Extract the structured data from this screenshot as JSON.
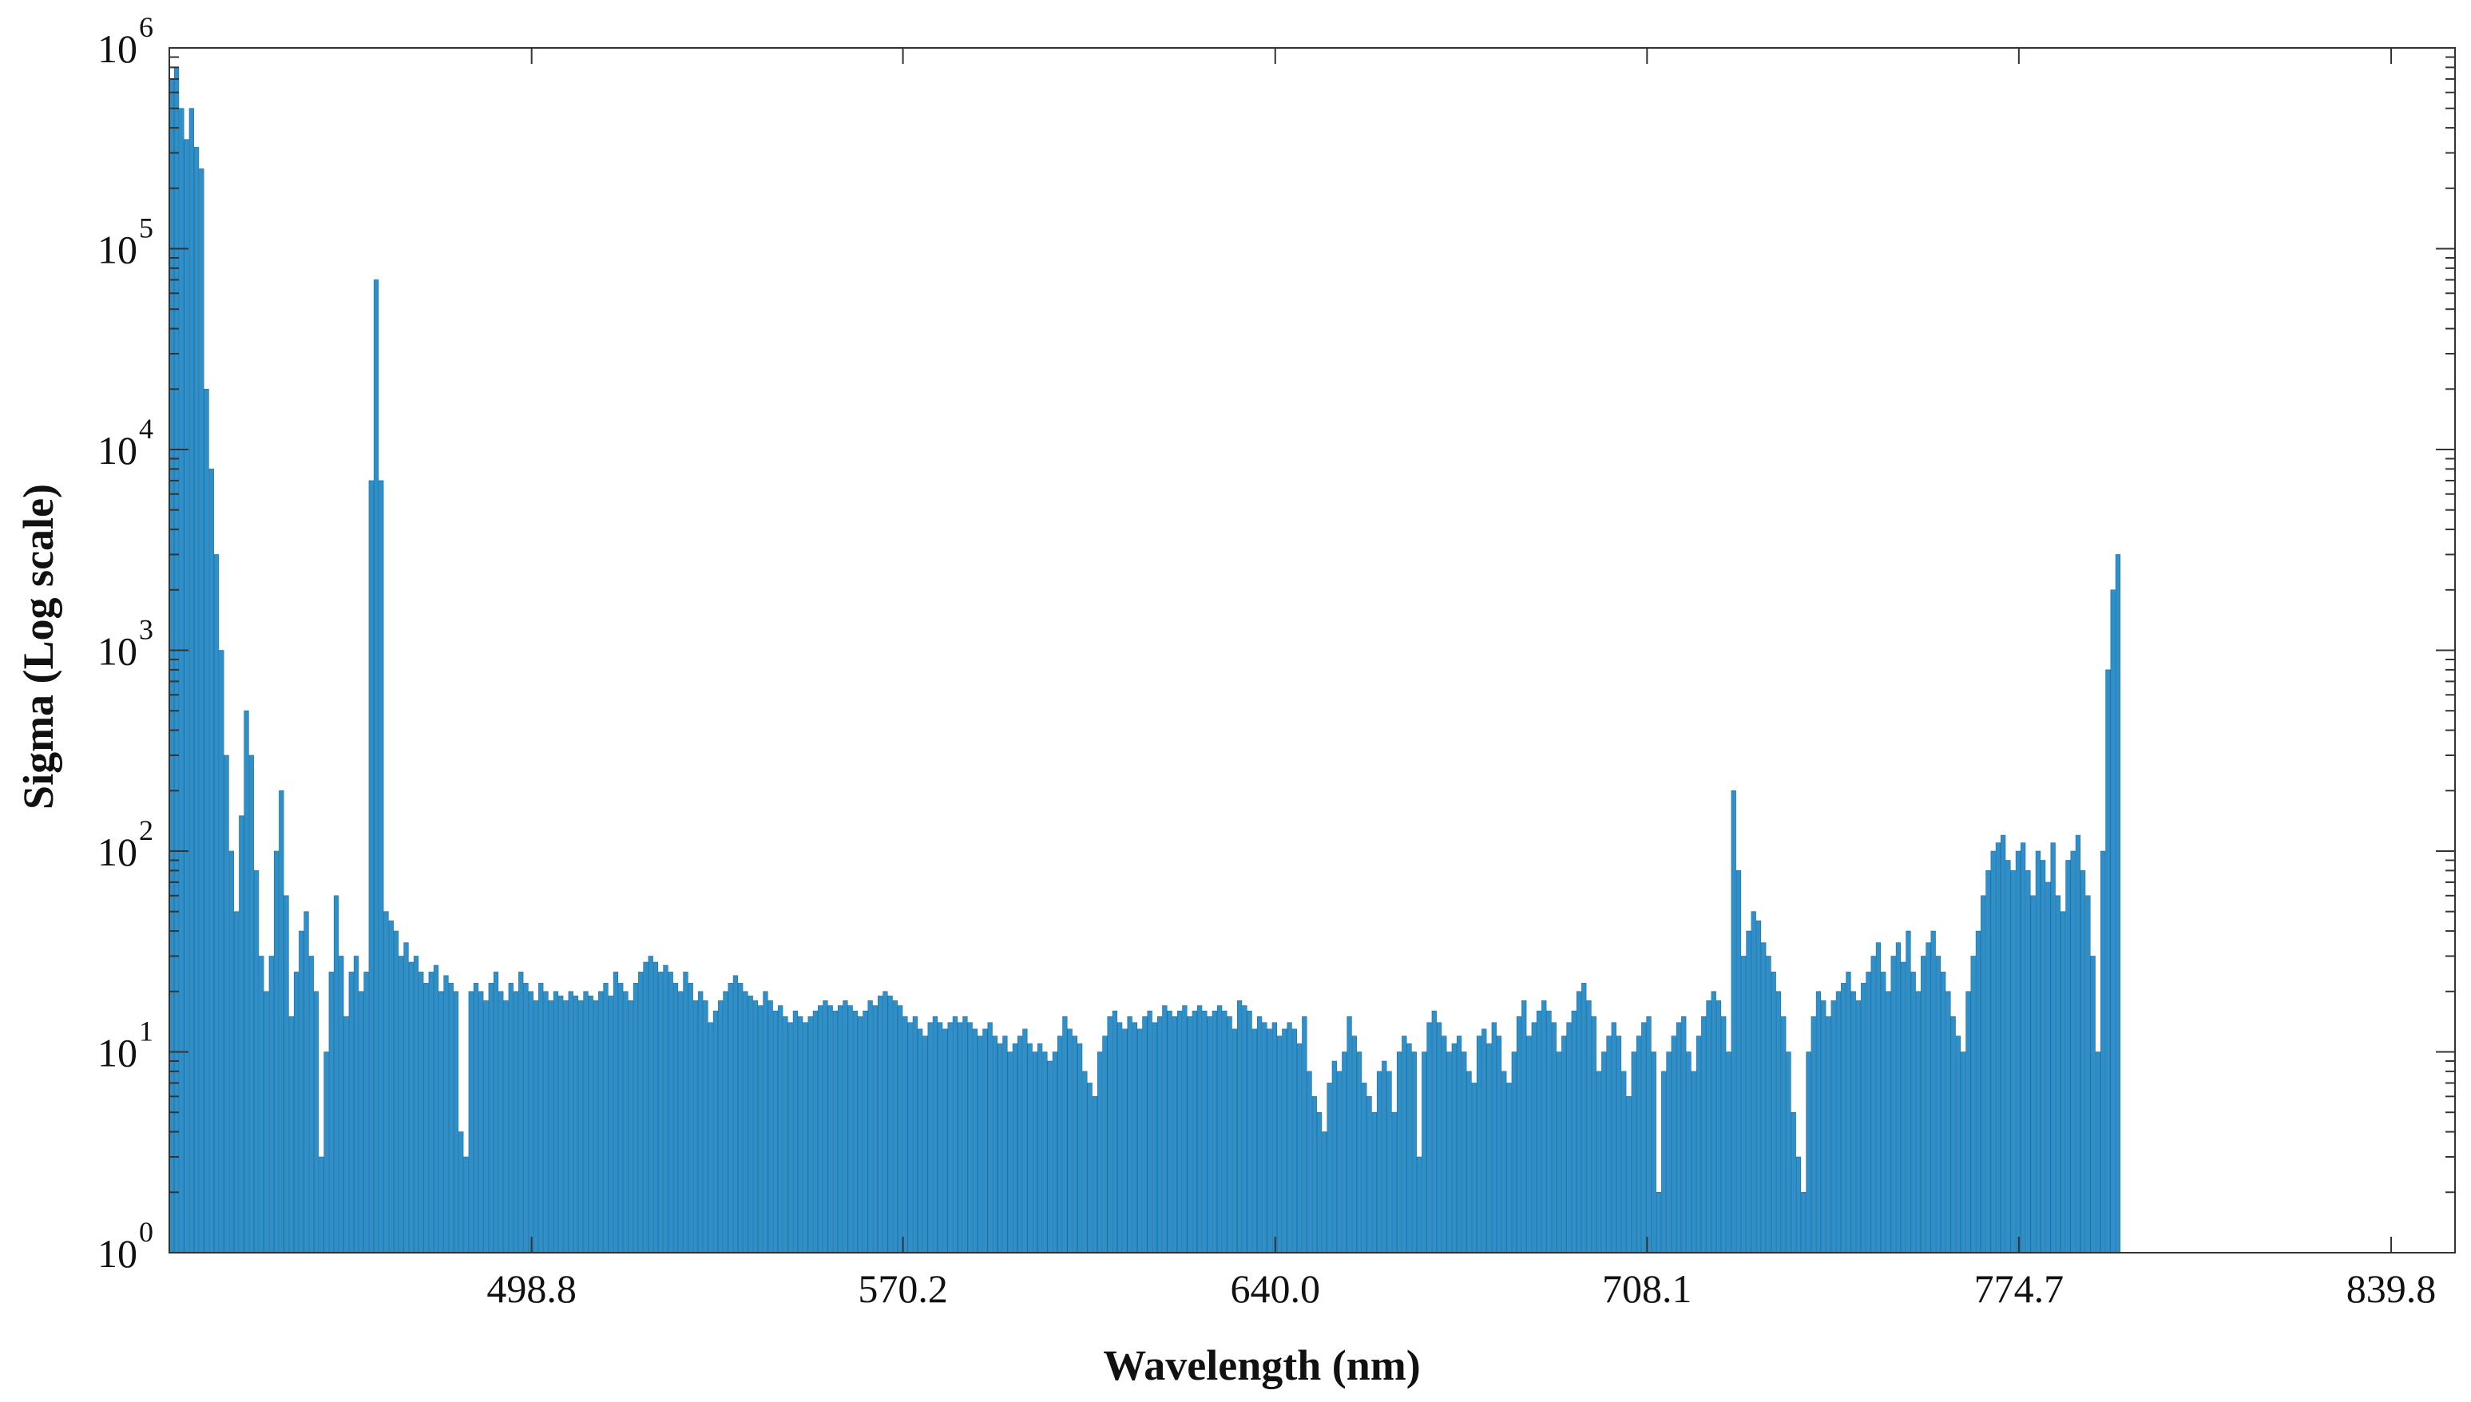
{
  "chart_data": {
    "type": "bar",
    "xlabel": "Wavelength (nm)",
    "ylabel": "Sigma (Log scale)",
    "yscale": "log",
    "ylim": [
      1,
      1000000
    ],
    "xlim": [
      401,
      859
    ],
    "x_ticks": [
      {
        "value": 473.6,
        "label": "498.8"
      },
      {
        "value": 548.0,
        "label": "570.2"
      },
      {
        "value": 622.6,
        "label": "640.0"
      },
      {
        "value": 697.1,
        "label": "708.1"
      },
      {
        "value": 771.6,
        "label": "774.7"
      },
      {
        "value": 846.2,
        "label": "839.8"
      }
    ],
    "y_ticks": [
      {
        "value": 1,
        "base": "10",
        "exp": "0"
      },
      {
        "value": 10,
        "base": "10",
        "exp": "1"
      },
      {
        "value": 100,
        "base": "10",
        "exp": "2"
      },
      {
        "value": 1000,
        "base": "10",
        "exp": "3"
      },
      {
        "value": 10000,
        "base": "10",
        "exp": "4"
      },
      {
        "value": 100000,
        "base": "10",
        "exp": "5"
      },
      {
        "value": 1000000,
        "base": "10",
        "exp": "6"
      }
    ],
    "grid": false,
    "bar_color": "#2f8fc9",
    "series": [
      {
        "x_start": 401,
        "x_step": 1,
        "values": [
          700000,
          800000,
          500000,
          350000,
          500000,
          320000,
          250000,
          20000,
          8000,
          3000,
          1000,
          300,
          100,
          50,
          150,
          500,
          300,
          80,
          30,
          20,
          30,
          100,
          200,
          60,
          15,
          25,
          40,
          50,
          30,
          20,
          3,
          10,
          25,
          60,
          30,
          15,
          25,
          30,
          20,
          25,
          7000,
          70000,
          7000,
          50,
          45,
          40,
          30,
          35,
          28,
          30,
          25,
          22,
          25,
          27,
          20,
          24,
          22,
          20,
          4,
          3,
          20,
          22,
          20,
          18,
          22,
          25,
          20,
          18,
          22,
          20,
          25,
          22,
          20,
          18,
          22,
          20,
          18,
          20,
          19,
          18,
          20,
          19,
          18,
          20,
          19,
          18,
          20,
          22,
          19,
          25,
          22,
          20,
          18,
          22,
          25,
          28,
          30,
          28,
          25,
          27,
          25,
          22,
          20,
          25,
          22,
          18,
          20,
          18,
          14,
          16,
          18,
          20,
          22,
          24,
          22,
          20,
          19,
          18,
          17,
          20,
          18,
          16,
          17,
          15,
          14,
          16,
          15,
          14,
          15,
          16,
          17,
          18,
          17,
          16,
          17,
          18,
          17,
          16,
          15,
          16,
          18,
          17,
          19,
          20,
          19,
          18,
          17,
          15,
          14,
          15,
          13,
          12,
          14,
          15,
          14,
          13,
          14,
          15,
          14,
          15,
          14,
          13,
          12,
          13,
          14,
          12,
          11,
          12,
          10,
          11,
          12,
          13,
          11,
          10,
          11,
          10,
          9,
          10,
          12,
          15,
          13,
          12,
          11,
          8,
          7,
          6,
          10,
          12,
          15,
          16,
          14,
          13,
          15,
          14,
          13,
          15,
          16,
          14,
          15,
          17,
          16,
          15,
          16,
          17,
          15,
          16,
          17,
          16,
          15,
          16,
          17,
          16,
          15,
          13,
          18,
          17,
          16,
          13,
          15,
          14,
          13,
          14,
          12,
          13,
          14,
          13,
          11,
          15,
          8,
          6,
          5,
          4,
          7,
          9,
          8,
          10,
          15,
          12,
          10,
          7,
          6,
          5,
          8,
          9,
          8,
          5,
          10,
          12,
          11,
          10,
          3,
          10,
          14,
          16,
          14,
          12,
          10,
          11,
          12,
          10,
          8,
          7,
          12,
          13,
          11,
          14,
          12,
          8,
          7,
          10,
          15,
          18,
          12,
          14,
          16,
          18,
          16,
          14,
          10,
          12,
          14,
          16,
          20,
          22,
          18,
          15,
          8,
          10,
          12,
          14,
          12,
          8,
          6,
          10,
          12,
          14,
          15,
          10,
          2,
          8,
          10,
          12,
          14,
          15,
          10,
          8,
          12,
          15,
          18,
          20,
          18,
          15,
          10,
          200,
          80,
          30,
          40,
          50,
          45,
          35,
          30,
          25,
          20,
          15,
          10,
          5,
          3,
          2,
          10,
          15,
          20,
          18,
          15,
          18,
          20,
          22,
          25,
          20,
          18,
          22,
          25,
          30,
          35,
          25,
          20,
          30,
          35,
          28,
          40,
          25,
          20,
          30,
          35,
          40,
          30,
          25,
          20,
          15,
          12,
          10,
          20,
          30,
          40,
          60,
          80,
          100,
          110,
          120,
          90,
          80,
          100,
          110,
          80,
          60,
          100,
          90,
          70,
          110,
          60,
          50,
          90,
          100,
          120,
          80,
          60,
          30,
          10,
          100,
          800,
          2000,
          3000
        ]
      }
    ]
  }
}
